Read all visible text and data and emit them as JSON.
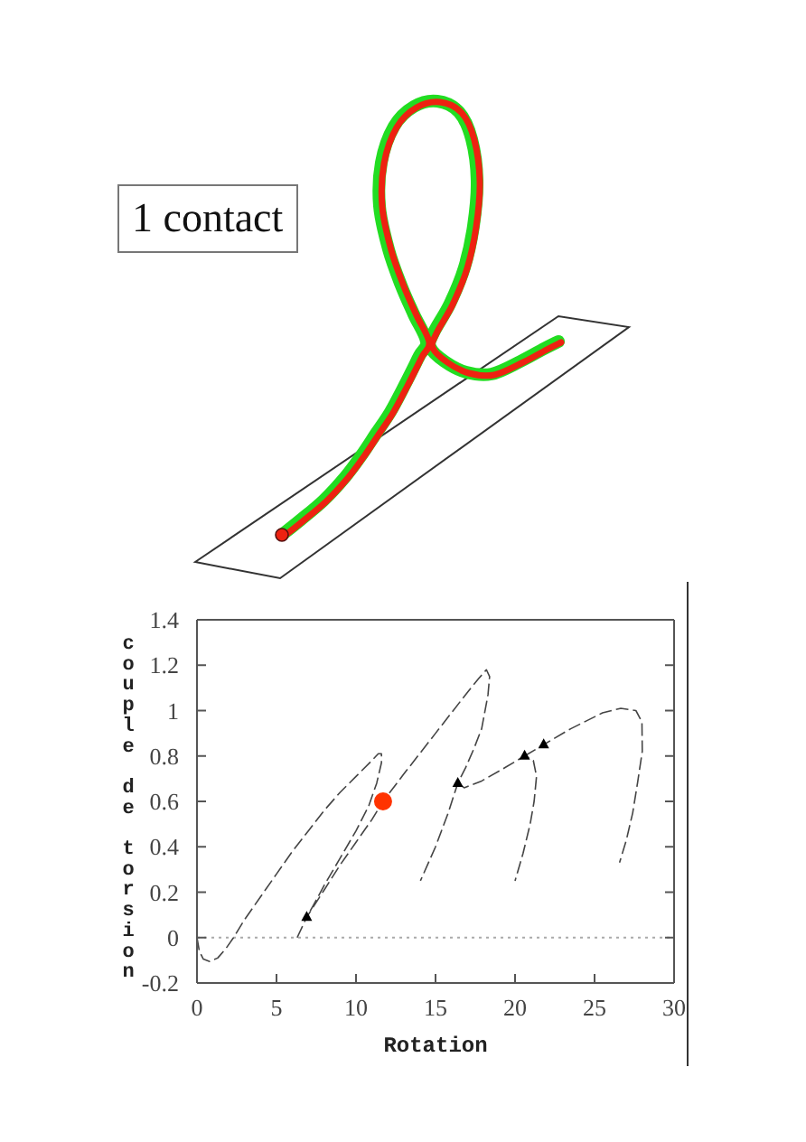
{
  "chart_data": {
    "type": "line",
    "xlabel": "Rotation",
    "ylabel": "couple de torsion",
    "annotations": [
      "1 contact"
    ],
    "xlim": [
      0,
      30
    ],
    "xticks": [
      0,
      5,
      10,
      15,
      20,
      25,
      30
    ],
    "ylim": [
      -0.2,
      1.4
    ],
    "yticks": [
      -0.2,
      0,
      0.2,
      0.4,
      0.6,
      0.8,
      1,
      1.2,
      1.4
    ],
    "ref_lines": [
      {
        "axis": "y",
        "value": 0,
        "color": "#aaaaaa",
        "line_style": "dotted"
      }
    ],
    "series": [
      {
        "color": "#444444",
        "line_style": "dashed",
        "marker": "none",
        "x": [
          0,
          0.15,
          0.4,
          0.8,
          1.3,
          1.8,
          2.3,
          3,
          4,
          5,
          6,
          7,
          8,
          9,
          10,
          11,
          11.4,
          11.6,
          11.6,
          11.3,
          10.8,
          10,
          9,
          8,
          7.3,
          6.9
        ],
        "values": [
          0,
          -0.06,
          -0.095,
          -0.105,
          -0.09,
          -0.05,
          0,
          0.08,
          0.18,
          0.28,
          0.38,
          0.47,
          0.56,
          0.64,
          0.71,
          0.78,
          0.81,
          0.81,
          0.77,
          0.68,
          0.58,
          0.47,
          0.35,
          0.23,
          0.14,
          0.09
        ]
      },
      {
        "color": "#444444",
        "line_style": "dashed",
        "marker": "none",
        "x": [
          6.3,
          6.9,
          8,
          9,
          10,
          11,
          11.7,
          13,
          14,
          15,
          16,
          17,
          17.7,
          18.2,
          18.4,
          18.3,
          17.9,
          17.4,
          16.9,
          16.4,
          15.8,
          15,
          14.05
        ],
        "values": [
          0,
          0.09,
          0.21,
          0.32,
          0.42,
          0.52,
          0.6,
          0.72,
          0.81,
          0.9,
          0.99,
          1.08,
          1.14,
          1.18,
          1.15,
          1.07,
          0.92,
          0.83,
          0.75,
          0.68,
          0.55,
          0.4,
          0.25
        ]
      },
      {
        "color": "#444444",
        "line_style": "dashed",
        "marker": "none",
        "x": [
          16.4,
          16.8,
          17.9,
          19.4,
          20.6,
          21.15,
          21.35,
          21.2,
          20.95,
          20.5,
          20
        ],
        "values": [
          0.68,
          0.66,
          0.69,
          0.75,
          0.8,
          0.78,
          0.71,
          0.6,
          0.5,
          0.37,
          0.25
        ]
      },
      {
        "color": "#444444",
        "line_style": "dashed",
        "marker": "none",
        "x": [
          20.6,
          21.8,
          23.5,
          25.5,
          26.65,
          27.6,
          27.98,
          28,
          27.7,
          27.4,
          27,
          26.57
        ],
        "values": [
          0.8,
          0.85,
          0.92,
          0.99,
          1.01,
          1,
          0.95,
          0.82,
          0.68,
          0.55,
          0.43,
          0.33
        ]
      },
      {
        "type": "scatter",
        "color": "#ff3300",
        "marker": "circle",
        "x": [
          11.7
        ],
        "values": [
          0.6
        ]
      },
      {
        "type": "scatter",
        "color": "#000000",
        "marker": "triangle",
        "x": [
          6.9,
          16.4,
          20.6,
          21.8
        ],
        "values": [
          0.09,
          0.68,
          0.8,
          0.85
        ]
      }
    ]
  }
}
